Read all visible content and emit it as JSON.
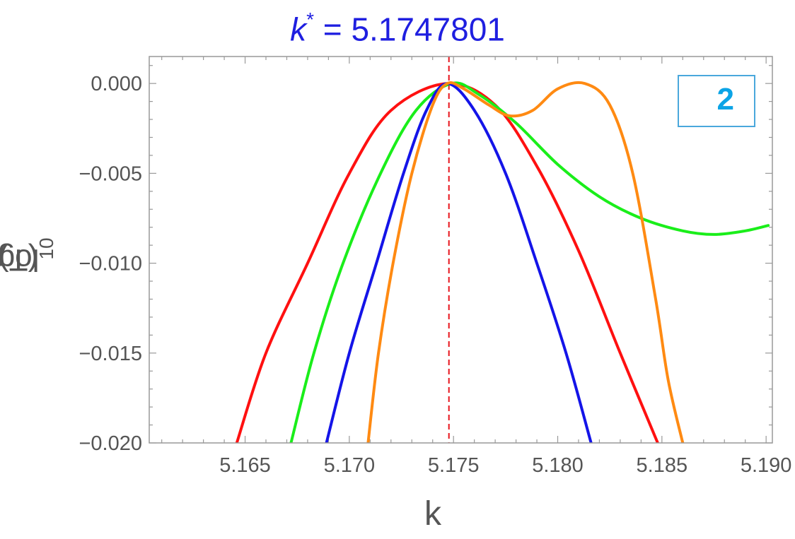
{
  "chart_data": {
    "type": "line",
    "title": {
      "symbol": "k",
      "superscript": "*",
      "rest": " = 5.1747801"
    },
    "title_color": "#1f1fe0",
    "xlabel": "k",
    "ylabel": {
      "main": "log",
      "sub": "10",
      "rest": "(T)"
    },
    "xlim": [
      5.1604,
      5.1903
    ],
    "ylim": [
      -0.02,
      0.0015
    ],
    "x_ticks": [
      5.165,
      5.17,
      5.175,
      5.18,
      5.185,
      5.19
    ],
    "x_tick_labels": [
      "5.165",
      "5.170",
      "5.175",
      "5.180",
      "5.185",
      "5.190"
    ],
    "y_ticks": [
      0.0,
      -0.005,
      -0.01,
      -0.015,
      -0.02
    ],
    "y_tick_labels": [
      "0.000",
      "−0.005",
      "−0.010",
      "−0.015",
      "−0.020"
    ],
    "grid": false,
    "reference_line": {
      "x": 5.1747801,
      "style": "dashed",
      "color": "#e8141b"
    },
    "series": [
      {
        "color": "#ff1010",
        "points": [
          [
            5.1646,
            -0.02
          ],
          [
            5.166,
            -0.015
          ],
          [
            5.168,
            -0.01
          ],
          [
            5.17,
            -0.005
          ],
          [
            5.172,
            -0.0015
          ],
          [
            5.1747,
            0.0
          ],
          [
            5.177,
            -0.0012
          ],
          [
            5.179,
            -0.0046
          ],
          [
            5.181,
            -0.0093
          ],
          [
            5.183,
            -0.015
          ],
          [
            5.1848,
            -0.02
          ]
        ]
      },
      {
        "color": "#1aee1a",
        "points": [
          [
            5.1672,
            -0.02
          ],
          [
            5.1683,
            -0.015
          ],
          [
            5.1697,
            -0.01
          ],
          [
            5.1715,
            -0.005
          ],
          [
            5.1732,
            -0.0015
          ],
          [
            5.1749,
            0.0
          ],
          [
            5.1762,
            -0.0006
          ],
          [
            5.178,
            -0.0022
          ],
          [
            5.18,
            -0.0045
          ],
          [
            5.182,
            -0.0063
          ],
          [
            5.184,
            -0.0075
          ],
          [
            5.186,
            -0.0082
          ],
          [
            5.1875,
            -0.0084
          ],
          [
            5.189,
            -0.0082
          ],
          [
            5.1901,
            -0.0079
          ]
        ]
      },
      {
        "color": "#1414e8",
        "points": [
          [
            5.1689,
            -0.02
          ],
          [
            5.17,
            -0.015
          ],
          [
            5.1713,
            -0.01
          ],
          [
            5.1726,
            -0.005
          ],
          [
            5.1737,
            -0.0015
          ],
          [
            5.1747,
            0.0
          ],
          [
            5.176,
            -0.0015
          ],
          [
            5.1775,
            -0.005
          ],
          [
            5.179,
            -0.01
          ],
          [
            5.1804,
            -0.015
          ],
          [
            5.1816,
            -0.02
          ]
        ]
      },
      {
        "color": "#ff8a12",
        "points": [
          [
            5.1709,
            -0.02
          ],
          [
            5.1714,
            -0.015
          ],
          [
            5.1721,
            -0.01
          ],
          [
            5.173,
            -0.005
          ],
          [
            5.174,
            -0.0012
          ],
          [
            5.1747,
            0.0
          ],
          [
            5.1755,
            -0.0003
          ],
          [
            5.1767,
            -0.0012
          ],
          [
            5.1777,
            -0.0018
          ],
          [
            5.1788,
            -0.0015
          ],
          [
            5.18,
            -0.0003
          ],
          [
            5.1813,
            0.0
          ],
          [
            5.1825,
            -0.0012
          ],
          [
            5.1836,
            -0.005
          ],
          [
            5.1847,
            -0.012
          ],
          [
            5.1853,
            -0.0165
          ],
          [
            5.186,
            -0.02
          ]
        ]
      }
    ]
  },
  "badge": {
    "label": "2",
    "text_color": "#0ba4e6",
    "border_color": "#4aa8dc"
  }
}
